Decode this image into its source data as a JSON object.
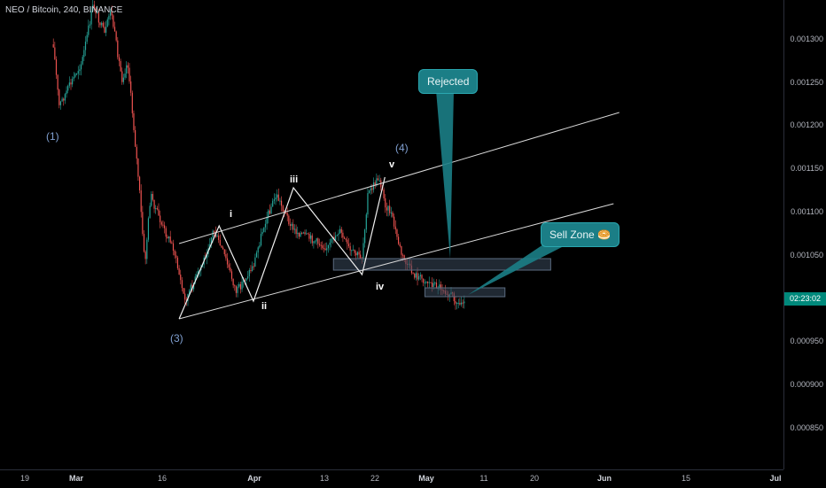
{
  "header": {
    "title": "NEO / Bitcoin, 240, BINANCE"
  },
  "price_axis": {
    "ticks": [
      "0.001300",
      "0.001250",
      "0.001200",
      "0.001150",
      "0.001100",
      "0.001050",
      "0.000950",
      "0.000900",
      "0.000850"
    ],
    "current_time_badge": "02:23:02"
  },
  "time_axis": {
    "ticks": [
      "19",
      "Mar",
      "16",
      "Apr",
      "13",
      "22",
      "May",
      "11",
      "20",
      "Jun",
      "15",
      "Jul"
    ],
    "bold": [
      "Mar",
      "Apr",
      "May",
      "Jun",
      "Jul"
    ]
  },
  "annotations": {
    "callouts": {
      "rejected": "Rejected",
      "sell_zone": "Sell Zone 🥯"
    },
    "major_waves": {
      "w1": "(1)",
      "w3": "(3)",
      "w4": "(4)"
    },
    "minor_waves": {
      "i": "i",
      "ii": "ii",
      "iii": "iii",
      "iv": "iv",
      "v": "v"
    }
  },
  "colors": {
    "background": "#000000",
    "up_candle": "#26a69a",
    "down_candle": "#ef5350",
    "trendline": "#d9d9d9",
    "zone": "#3a4a5c",
    "callout": "#1b7e86",
    "price_badge": "#00897b"
  },
  "chart_data": {
    "type": "candlestick",
    "symbol": "NEO / Bitcoin",
    "interval": "240",
    "exchange": "BINANCE",
    "ylim": [
      0.00081,
      0.00134
    ],
    "path_close": [
      {
        "date": "Feb 26",
        "close": 0.00129
      },
      {
        "date": "Feb 27",
        "close": 0.00122
      },
      {
        "date": "Mar 2",
        "close": 0.00127
      },
      {
        "date": "Mar 4",
        "close": 0.001335
      },
      {
        "date": "Mar 6",
        "close": 0.0013
      },
      {
        "date": "Mar 7",
        "close": 0.00133
      },
      {
        "date": "Mar 9",
        "close": 0.00125
      },
      {
        "date": "Mar 10",
        "close": 0.00127
      },
      {
        "date": "Mar 11",
        "close": 0.0012
      },
      {
        "date": "Mar 12",
        "close": 0.00113
      },
      {
        "date": "Mar 13",
        "close": 0.00104
      },
      {
        "date": "Mar 14",
        "close": 0.00112
      },
      {
        "date": "Mar 16",
        "close": 0.001085
      },
      {
        "date": "Mar 18",
        "close": 0.00106
      },
      {
        "date": "Mar 20",
        "close": 0.001
      },
      {
        "date": "Mar 23",
        "close": 0.00104
      },
      {
        "date": "Mar 25",
        "close": 0.00108
      },
      {
        "date": "Mar 27",
        "close": 0.00105
      },
      {
        "date": "Mar 29",
        "close": 0.00101
      },
      {
        "date": "Apr 1",
        "close": 0.00104
      },
      {
        "date": "Apr 3",
        "close": 0.00109
      },
      {
        "date": "Apr 5",
        "close": 0.00112
      },
      {
        "date": "Apr 8",
        "close": 0.00108
      },
      {
        "date": "Apr 11",
        "close": 0.00107
      },
      {
        "date": "Apr 14",
        "close": 0.00106
      },
      {
        "date": "Apr 16",
        "close": 0.00108
      },
      {
        "date": "Apr 18",
        "close": 0.001055
      },
      {
        "date": "Apr 20",
        "close": 0.00105
      },
      {
        "date": "Apr 21",
        "close": 0.00112
      },
      {
        "date": "Apr 23",
        "close": 0.00114
      },
      {
        "date": "Apr 24",
        "close": 0.00111
      },
      {
        "date": "Apr 25",
        "close": 0.0011
      },
      {
        "date": "Apr 27",
        "close": 0.00105
      },
      {
        "date": "Apr 29",
        "close": 0.00103
      },
      {
        "date": "May 2",
        "close": 0.00102
      },
      {
        "date": "May 4",
        "close": 0.001015
      },
      {
        "date": "May 6",
        "close": 0.001005
      },
      {
        "date": "May 7",
        "close": 0.000995
      },
      {
        "date": "May 8",
        "close": 0.001005
      }
    ],
    "channel_lines": [
      {
        "from": {
          "date": "Mar 19",
          "price": 0.00098
        },
        "to": {
          "date": "Jun 3",
          "price": 0.00111
        }
      },
      {
        "from": {
          "date": "Mar 19",
          "price": 0.001065
        },
        "to": {
          "date": "Jun 4",
          "price": 0.001213
        }
      }
    ],
    "wave_path": [
      {
        "label": "(3)",
        "date": "Mar 19",
        "price": 0.00098
      },
      {
        "label": "i",
        "date": "Mar 26",
        "price": 0.001085
      },
      {
        "label": "ii",
        "date": "Apr 1",
        "price": 0.001
      },
      {
        "label": "iii",
        "date": "Apr 8",
        "price": 0.001128
      },
      {
        "label": "iv",
        "date": "Apr 20",
        "price": 0.00103
      },
      {
        "label": "v",
        "date": "Apr 24",
        "price": 0.00114
      }
    ],
    "zones": [
      {
        "x0": "Apr 15",
        "x1": "May 23",
        "y0": 0.001035,
        "y1": 0.001048
      },
      {
        "x0": "May 1",
        "x1": "May 15",
        "y0": 0.001005,
        "y1": 0.001015
      }
    ]
  }
}
